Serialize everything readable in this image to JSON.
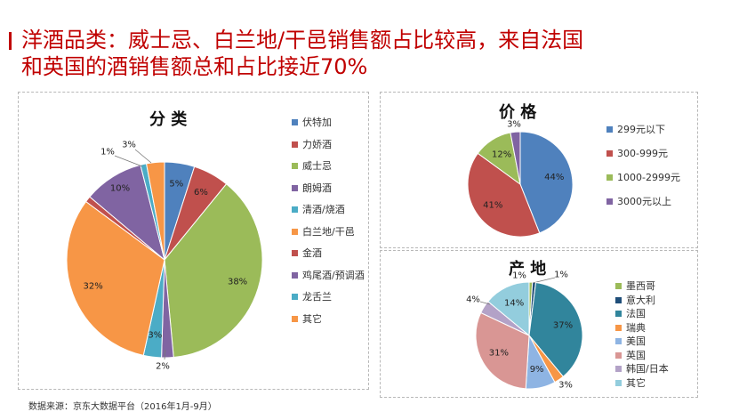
{
  "headline": {
    "line1": "洋酒品类：威士忌、白兰地/干邑销售额占比较高，来自法国",
    "line2": "和英国的酒销售额总和占比接近70%"
  },
  "colors": {
    "accent": "#c00000",
    "palette": [
      "#4f81bd",
      "#c0504d",
      "#9bbb59",
      "#8064a2",
      "#4bacc6",
      "#f79646",
      "#c0504d",
      "#8064a2",
      "#4bacc6",
      "#f79646"
    ]
  },
  "source": "数据来源：京东大数据平台（2016年1月-9月）",
  "chart_data": [
    {
      "type": "pie",
      "title": "分 类",
      "labels": [
        "伏特加",
        "力娇酒",
        "威士忌",
        "朗姆酒",
        "清酒/烧酒",
        "白兰地/干邑",
        "金酒",
        "鸡尾酒/预调酒",
        "龙舌兰",
        "其它"
      ],
      "values": [
        5,
        6,
        38,
        2,
        3,
        32,
        1,
        10,
        1,
        3
      ],
      "data_labels": [
        "5%",
        "6%",
        "38%",
        "2%",
        "3%",
        "32%",
        "",
        "10%",
        "1%",
        "3%"
      ],
      "colors": [
        "#4f81bd",
        "#c0504d",
        "#9bbb59",
        "#8064a2",
        "#4bacc6",
        "#f79646",
        "#c0504d",
        "#8064a2",
        "#4bacc6",
        "#f79646"
      ],
      "legend_position": "right"
    },
    {
      "type": "pie",
      "title": "价 格",
      "labels": [
        "299元以下",
        "300-999元",
        "1000-2999元",
        "3000元以上"
      ],
      "values": [
        44,
        41,
        12,
        3
      ],
      "data_labels": [
        "44%",
        "41%",
        "12%",
        "3%"
      ],
      "colors": [
        "#4f81bd",
        "#c0504d",
        "#9bbb59",
        "#8064a2"
      ],
      "legend_position": "right"
    },
    {
      "type": "pie",
      "title": "产 地",
      "labels": [
        "墨西哥",
        "意大利",
        "法国",
        "瑞典",
        "美国",
        "英国",
        "韩国/日本",
        "其它"
      ],
      "values": [
        1,
        1,
        37,
        3,
        9,
        31,
        4,
        14
      ],
      "data_labels": [
        "1%",
        "1%",
        "37%",
        "3%",
        "9%",
        "31%",
        "4%",
        "14%"
      ],
      "colors": [
        "#9bbb59",
        "#1f4e79",
        "#31859c",
        "#f79646",
        "#8eb4e3",
        "#d99694",
        "#b3a2c7",
        "#93cddd"
      ],
      "legend_position": "right"
    }
  ]
}
